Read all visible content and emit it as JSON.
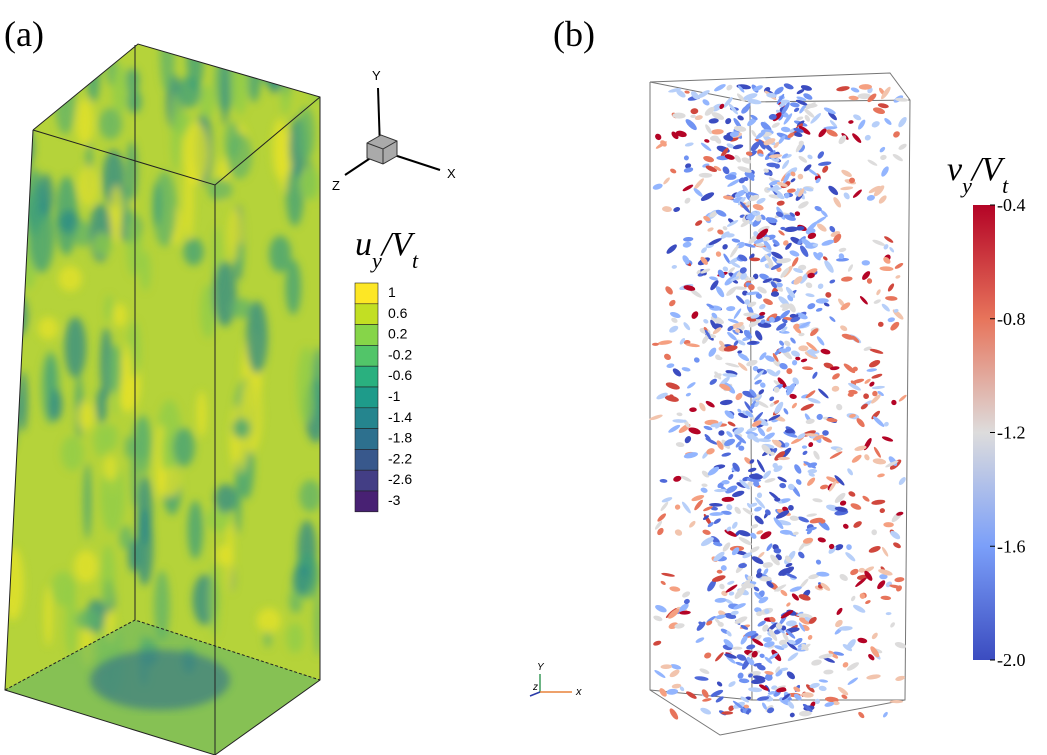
{
  "panel_a": {
    "label": "(a)",
    "triad": {
      "y": "Y",
      "x": "X",
      "z": "Z"
    },
    "colorbar": {
      "title": [
        "u",
        "y",
        "/V",
        "t"
      ],
      "ticks": [
        "1",
        "0.6",
        "0.2",
        "-0.2",
        "-0.6",
        "-1",
        "-1.4",
        "-1.8",
        "-2.2",
        "-2.6",
        "-3"
      ]
    }
  },
  "panel_b": {
    "label": "(b)",
    "triad": {
      "y": "Y",
      "x": "x",
      "z": "z"
    },
    "colorbar": {
      "title": [
        "v",
        "y",
        "/V",
        "t"
      ],
      "ticks": [
        "-0.4",
        "-0.8",
        "-1.2",
        "-1.6",
        "-2.0"
      ]
    }
  }
}
